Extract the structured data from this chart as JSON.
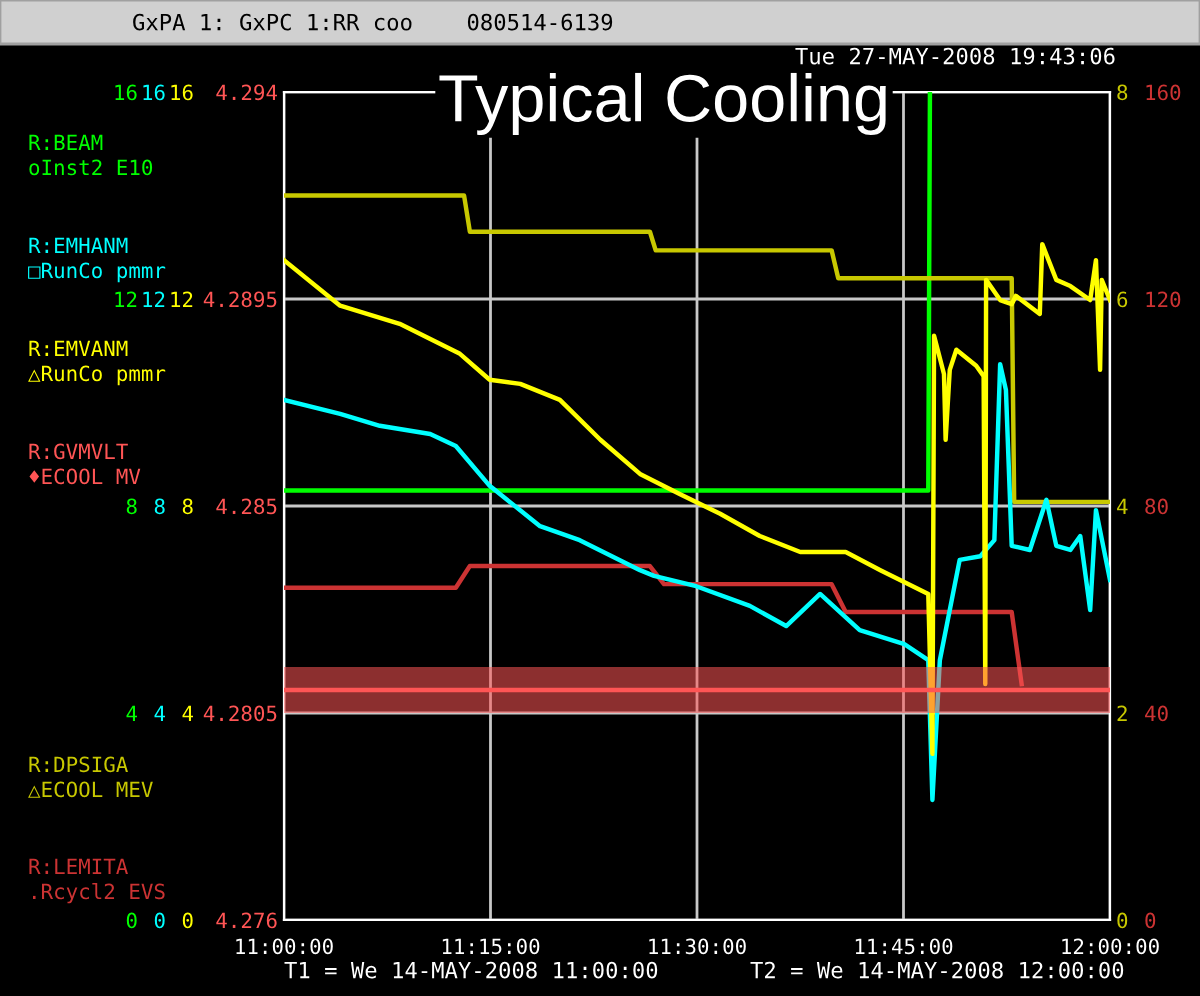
{
  "chart_data": [
    {
      "type": "line",
      "title": "Typical Cooling",
      "annotations": [
        "GxPA 1: GxPC 1:RR coo    080514-6139",
        "Tue 27-MAY-2008 19:43:06",
        "T1 = We 14-MAY-2008 11:00:00",
        "T2 = We 14-MAY-2008 12:00:00"
      ],
      "xlim": [
        11,
        12
      ],
      "xticks": [
        {
          "value": 11,
          "label": "11:00:00"
        },
        {
          "value": 11.25,
          "label": "11:15:00"
        },
        {
          "value": 11.5,
          "label": "11:30:00"
        },
        {
          "value": 11.75,
          "label": "11:45:00"
        },
        {
          "value": 12,
          "label": "12:00:00"
        }
      ],
      "ylim": [
        0,
        16
      ],
      "yticks": [
        0,
        4,
        8,
        12,
        16
      ],
      "y2lim": [
        0,
        8
      ],
      "y2ticks": [
        0,
        2,
        4,
        6,
        8
      ],
      "y3lim": [
        0,
        160
      ],
      "y3ticks": [
        0,
        40,
        80,
        120,
        160
      ],
      "grid": true,
      "legend": "left",
      "marker": "none",
      "line_style": "solid",
      "series": [
        {
          "name": "R:BEAM\noInst2 E10",
          "color": "#00ff00",
          "axis": "y",
          "x": [
            11.0,
            11.25,
            11.5,
            11.78,
            11.782
          ],
          "values": [
            8.3,
            8.3,
            8.3,
            8.3,
            16
          ]
        },
        {
          "name": "R:DPSIGA\n△ECOOL MEV",
          "color": "#c8c800",
          "axis": "y2",
          "x": [
            11.0,
            11.218,
            11.225,
            11.443,
            11.45,
            11.663,
            11.671,
            11.881,
            11.884,
            12.0
          ],
          "values": [
            7.0,
            7.0,
            6.65,
            6.65,
            6.47,
            6.47,
            6.2,
            6.2,
            4.04,
            4.04
          ]
        },
        {
          "name": "R:LEMITA\n.Rcycl2 EVS",
          "color": "#cc3333",
          "axis": "y3",
          "x": [
            11.0,
            11.208,
            11.225,
            11.443,
            11.46,
            11.663,
            11.68,
            11.881,
            11.893
          ],
          "values": [
            64.2,
            64.2,
            68.4,
            68.4,
            64.9,
            64.9,
            59.5,
            59.5,
            45.6
          ]
        }
      ]
    },
    {
      "type": "line",
      "xlim": [
        11,
        12
      ],
      "ylim": [
        0,
        16
      ],
      "yticks": [
        0,
        4,
        8,
        12,
        16
      ],
      "tick_labels": "y",
      "legend": "left",
      "marker": "none",
      "line_style": "solid",
      "series": [
        {
          "name": "R:EMHANM\n□RunCo pmmr",
          "color": "#00ffff",
          "axis": "y",
          "x": [
            11.0,
            11.068,
            11.116,
            11.177,
            11.208,
            11.249,
            11.31,
            11.358,
            11.431,
            11.448,
            11.499,
            11.564,
            11.608,
            11.649,
            11.697,
            11.751,
            11.78,
            11.785,
            11.794,
            11.818,
            11.843,
            11.86,
            11.867,
            11.874,
            11.881,
            11.903,
            11.923,
            11.935,
            11.952,
            11.964,
            11.976,
            11.983,
            12.0
          ],
          "values": [
            10.05,
            9.78,
            9.55,
            9.39,
            9.16,
            8.39,
            7.61,
            7.34,
            6.76,
            6.65,
            6.45,
            6.07,
            5.68,
            6.3,
            5.6,
            5.33,
            5.02,
            2.32,
            5.02,
            6.96,
            7.03,
            7.34,
            10.74,
            10.24,
            7.23,
            7.15,
            8.12,
            7.23,
            7.15,
            7.42,
            5.99,
            7.92,
            6.57
          ]
        }
      ]
    },
    {
      "type": "line",
      "xlim": [
        11,
        12
      ],
      "ylim": [
        0,
        16
      ],
      "yticks": [
        0,
        4,
        8,
        12,
        16
      ],
      "tick_labels": "y",
      "legend": "left",
      "marker": "none",
      "line_style": "solid",
      "series": [
        {
          "name": "R:EMVANM\n△RunCo pmmr",
          "color": "#ffff00",
          "axis": "y",
          "x": [
            11.0,
            11.068,
            11.14,
            11.213,
            11.249,
            11.286,
            11.334,
            11.383,
            11.431,
            11.479,
            11.528,
            11.576,
            11.625,
            11.68,
            11.722,
            11.78,
            11.785,
            11.787,
            11.799,
            11.801,
            11.806,
            11.814,
            11.838,
            11.847,
            11.849,
            11.85,
            11.867,
            11.881,
            11.886,
            11.915,
            11.918,
            11.935,
            11.952,
            11.976,
            11.983,
            11.988,
            11.99,
            12.0
          ],
          "values": [
            12.75,
            11.87,
            11.52,
            10.94,
            10.44,
            10.36,
            10.05,
            9.28,
            8.62,
            8.23,
            7.85,
            7.42,
            7.11,
            7.11,
            6.76,
            6.3,
            3.21,
            11.29,
            10.55,
            9.28,
            10.63,
            11.02,
            10.71,
            10.51,
            4.56,
            12.37,
            11.98,
            11.9,
            12.06,
            11.71,
            13.06,
            12.37,
            12.25,
            11.98,
            12.75,
            10.63,
            12.37,
            11.98
          ]
        }
      ]
    },
    {
      "type": "line",
      "xlim": [
        11,
        12
      ],
      "ylim": [
        4.276,
        4.294
      ],
      "yticks": [
        4.276,
        4.2805,
        4.285,
        4.2895,
        4.294
      ],
      "tick_labels": "y",
      "legend": "left",
      "marker": "none",
      "line_style": "solid",
      "series": [
        {
          "name": "R:GVMVLT\n♦ECOOL MV",
          "color": "#ff5555",
          "axis": "y",
          "x": [
            11.0,
            11.2,
            11.4,
            11.6,
            11.8,
            12.0
          ],
          "values": [
            4.281,
            4.281,
            4.281,
            4.281,
            4.281,
            4.281
          ],
          "lower": [
            4.2805,
            4.2805,
            4.2805,
            4.2805,
            4.2805,
            4.2805
          ],
          "upper": [
            4.2815,
            4.2815,
            4.2815,
            4.2815,
            4.2815,
            4.2815
          ]
        }
      ]
    }
  ]
}
